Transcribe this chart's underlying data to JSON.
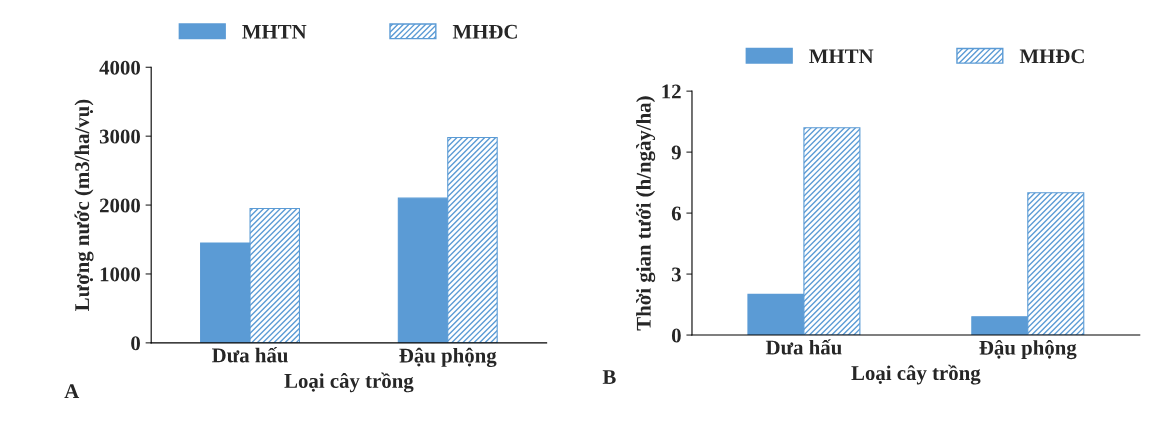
{
  "chart_data": [
    {
      "type": "bar",
      "categories": [
        "Dưa hấu",
        "Đậu phộng"
      ],
      "xlabel": "Loại cây trồng",
      "ylabel": "Lượng nước (m3/ha/vụ)",
      "series": [
        {
          "name": "MHTN",
          "color": "#5b9bd5",
          "values": [
            1450,
            2100
          ]
        },
        {
          "name": "MHĐC",
          "color": "#5b9bd5",
          "values": [
            1950,
            2980
          ]
        }
      ],
      "ylim": [
        0,
        4000
      ],
      "yticks": [
        0,
        1000,
        2000,
        3000,
        4000
      ],
      "grid": false,
      "legend": "top",
      "annotations": [
        "A"
      ]
    },
    {
      "type": "bar",
      "categories": [
        "Dưa hấu",
        "Đậu phộng"
      ],
      "xlabel": "Loại cây trồng",
      "ylabel": "Thời gian tưới (h/ngày/ha)",
      "series": [
        {
          "name": "MHTN",
          "color": "#5b9bd5",
          "values": [
            2.0,
            0.9
          ]
        },
        {
          "name": "MHĐC",
          "color": "#5b9bd5",
          "values": [
            10.2,
            7.0
          ]
        }
      ],
      "ylim": [
        0,
        12
      ],
      "yticks": [
        0,
        3,
        6,
        9,
        12
      ],
      "grid": false,
      "legend": "top",
      "annotations": [
        "B"
      ]
    }
  ]
}
